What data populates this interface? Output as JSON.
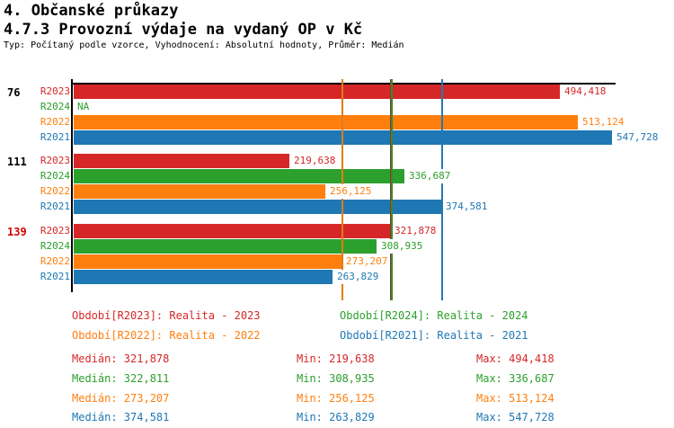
{
  "header": {
    "title": "4. Občanské průkazy",
    "subtitle": "4.7.3 Provozní výdaje na vydaný OP v Kč",
    "meta": "Typ: Počítaný podle vzorce, Vyhodnocení: Absolutní hodnoty, Průměr: Medián"
  },
  "palette": {
    "R2023": "#d62728",
    "R2024": "#2ca02c",
    "R2022": "#ff7f0e",
    "R2021": "#1f77b4",
    "axis": "#000000"
  },
  "chart_data": {
    "type": "bar",
    "orientation": "horizontal",
    "unit": "Kč",
    "xlim": [
      0,
      551400
    ],
    "grid": false,
    "series_order": [
      "R2023",
      "R2024",
      "R2022",
      "R2021"
    ],
    "groups": [
      {
        "label": "76",
        "label_color": "#000000",
        "bars": [
          {
            "series": "R2023",
            "value": 494418,
            "display": "494,418"
          },
          {
            "series": "R2024",
            "value": null,
            "display": "NA"
          },
          {
            "series": "R2022",
            "value": 513124,
            "display": "513,124"
          },
          {
            "series": "R2021",
            "value": 547728,
            "display": "547,728"
          }
        ]
      },
      {
        "label": "111",
        "label_color": "#000000",
        "bars": [
          {
            "series": "R2023",
            "value": 219638,
            "display": "219,638"
          },
          {
            "series": "R2024",
            "value": 336687,
            "display": "336,687"
          },
          {
            "series": "R2022",
            "value": 256125,
            "display": "256,125"
          },
          {
            "series": "R2021",
            "value": 374581,
            "display": "374,581"
          }
        ]
      },
      {
        "label": "139",
        "label_color": "#d40000",
        "bars": [
          {
            "series": "R2023",
            "value": 321878,
            "display": "321,878"
          },
          {
            "series": "R2024",
            "value": 308935,
            "display": "308,935"
          },
          {
            "series": "R2022",
            "value": 273207,
            "display": "273,207"
          },
          {
            "series": "R2021",
            "value": 263829,
            "display": "263,829"
          }
        ]
      }
    ],
    "median_lines": [
      {
        "series": "R2022",
        "value": 273207,
        "color": "#e07d1a"
      },
      {
        "series": "R2023",
        "value": 321878,
        "color": "#9e2f26"
      },
      {
        "series": "R2024",
        "value": 322811,
        "color": "#2f8f2f"
      },
      {
        "series": "R2021",
        "value": 374581,
        "color": "#2878b0"
      }
    ]
  },
  "legend": {
    "rows": [
      [
        {
          "text": "Období[R2023]: Realita - 2023",
          "color": "#d62728"
        },
        {
          "text": "Období[R2024]: Realita - 2024",
          "color": "#2ca02c"
        }
      ],
      [
        {
          "text": "Období[R2022]: Realita - 2022",
          "color": "#ff7f0e"
        },
        {
          "text": "Období[R2021]: Realita - 2021",
          "color": "#1f77b4"
        }
      ]
    ]
  },
  "stats": {
    "rows": [
      {
        "color": "#d62728",
        "cells": [
          "Medián: 321,878",
          "Min: 219,638",
          "Max: 494,418"
        ]
      },
      {
        "color": "#2ca02c",
        "cells": [
          "Medián: 322,811",
          "Min: 308,935",
          "Max: 336,687"
        ]
      },
      {
        "color": "#ff7f0e",
        "cells": [
          "Medián: 273,207",
          "Min: 256,125",
          "Max: 513,124"
        ]
      },
      {
        "color": "#1f77b4",
        "cells": [
          "Medián: 374,581",
          "Min: 263,829",
          "Max: 547,728"
        ]
      }
    ]
  }
}
